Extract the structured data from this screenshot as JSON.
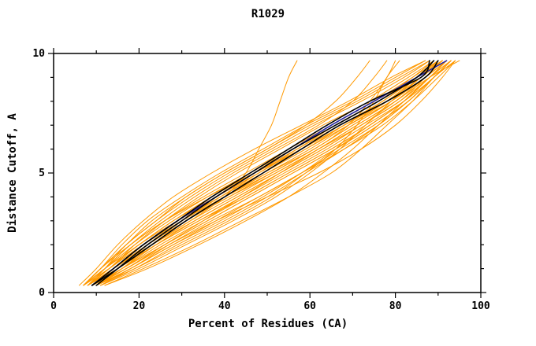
{
  "chart_data": {
    "type": "line",
    "title": "R1029",
    "xlabel": "Percent of Residues (CA)",
    "ylabel": "Distance Cutoff, A",
    "xlim": [
      0,
      100
    ],
    "ylim": [
      0,
      10
    ],
    "grid": false,
    "legend": null,
    "xticks": {
      "major": [
        0,
        20,
        40,
        60,
        80,
        100
      ],
      "labels": [
        "0",
        "20",
        "40",
        "60",
        "80",
        "100"
      ],
      "minor_step": 10
    },
    "yticks": {
      "major": [
        0,
        5,
        10
      ],
      "labels": [
        "0",
        "5",
        "10"
      ],
      "minor_step": 1
    },
    "colors": {
      "orange": "#FF9900",
      "blue": "#2121A3",
      "black": "#000000",
      "frame": "#000000",
      "background": "#FFFFFF"
    },
    "widths": {
      "orange": 1,
      "blue": 1.5,
      "black": 1.6
    },
    "cutoffs": [
      0.3,
      1,
      2,
      3,
      4,
      5,
      6,
      7,
      8,
      9,
      9.7
    ],
    "series": [
      {
        "color": "orange",
        "percent": [
          7,
          11,
          17,
          24,
          32,
          41,
          51,
          61,
          72,
          82,
          88
        ]
      },
      {
        "color": "orange",
        "percent": [
          8,
          13,
          20,
          28,
          37,
          47,
          57,
          67,
          77,
          85,
          90
        ]
      },
      {
        "color": "orange",
        "percent": [
          9,
          15,
          23,
          32,
          42,
          52,
          62,
          72,
          80,
          87,
          92
        ]
      },
      {
        "color": "orange",
        "percent": [
          10,
          17,
          26,
          36,
          46,
          56,
          66,
          75,
          83,
          89,
          93
        ]
      },
      {
        "color": "orange",
        "percent": [
          8,
          14,
          22,
          31,
          41,
          51,
          61,
          70,
          79,
          86,
          91
        ]
      },
      {
        "color": "orange",
        "percent": [
          7,
          12,
          19,
          27,
          36,
          46,
          56,
          66,
          76,
          84,
          89
        ]
      },
      {
        "color": "orange",
        "percent": [
          9,
          16,
          25,
          35,
          45,
          55,
          65,
          74,
          82,
          88,
          92
        ]
      },
      {
        "color": "orange",
        "percent": [
          8,
          13,
          21,
          30,
          40,
          50,
          60,
          69,
          78,
          85,
          90
        ]
      },
      {
        "color": "orange",
        "percent": [
          10,
          18,
          28,
          38,
          48,
          58,
          68,
          77,
          84,
          90,
          94
        ]
      },
      {
        "color": "orange",
        "percent": [
          7,
          11,
          16,
          22,
          30,
          39,
          49,
          59,
          70,
          80,
          87
        ]
      },
      {
        "color": "orange",
        "percent": [
          9,
          15,
          23,
          32,
          40,
          45,
          48,
          51,
          53,
          55,
          57
        ]
      },
      {
        "color": "orange",
        "percent": [
          11,
          20,
          31,
          42,
          52,
          60,
          67,
          73,
          79,
          85,
          90
        ]
      },
      {
        "color": "orange",
        "percent": [
          12,
          21,
          33,
          44,
          55,
          65,
          72,
          78,
          84,
          89,
          93
        ]
      },
      {
        "color": "orange",
        "percent": [
          8,
          12,
          18,
          25,
          33,
          42,
          52,
          62,
          70,
          75,
          78
        ]
      },
      {
        "color": "orange",
        "percent": [
          9,
          14,
          21,
          29,
          38,
          48,
          58,
          68,
          78,
          86,
          91
        ]
      },
      {
        "color": "orange",
        "percent": [
          10,
          16,
          24,
          33,
          43,
          53,
          63,
          72,
          81,
          88,
          92
        ]
      },
      {
        "color": "orange",
        "percent": [
          7,
          12,
          18,
          26,
          35,
          45,
          55,
          65,
          75,
          84,
          90
        ]
      },
      {
        "color": "orange",
        "percent": [
          8,
          14,
          21,
          30,
          39,
          49,
          59,
          68,
          77,
          85,
          91
        ]
      },
      {
        "color": "orange",
        "percent": [
          9,
          15,
          24,
          34,
          44,
          54,
          64,
          73,
          82,
          89,
          93
        ]
      },
      {
        "color": "orange",
        "percent": [
          10,
          17,
          27,
          38,
          50,
          62,
          72,
          80,
          86,
          91,
          94
        ]
      },
      {
        "color": "orange",
        "percent": [
          8,
          13,
          19,
          26,
          34,
          43,
          53,
          63,
          74,
          83,
          89
        ]
      },
      {
        "color": "orange",
        "percent": [
          7,
          11,
          17,
          23,
          31,
          40,
          50,
          60,
          71,
          81,
          88
        ]
      },
      {
        "color": "orange",
        "percent": [
          9,
          16,
          26,
          36,
          46,
          56,
          66,
          75,
          83,
          89,
          93
        ]
      },
      {
        "color": "orange",
        "percent": [
          11,
          19,
          29,
          40,
          50,
          59,
          68,
          76,
          83,
          89,
          93
        ]
      },
      {
        "color": "orange",
        "percent": [
          8,
          13,
          20,
          29,
          39,
          49,
          59,
          69,
          79,
          87,
          92
        ]
      },
      {
        "color": "orange",
        "percent": [
          10,
          16,
          23,
          31,
          40,
          50,
          61,
          69,
          74,
          78,
          80
        ]
      },
      {
        "color": "orange",
        "percent": [
          7,
          12,
          20,
          28,
          38,
          48,
          58,
          68,
          78,
          86,
          91
        ]
      },
      {
        "color": "orange",
        "percent": [
          9,
          14,
          22,
          31,
          41,
          52,
          62,
          71,
          80,
          87,
          92
        ]
      },
      {
        "color": "orange",
        "percent": [
          8,
          15,
          24,
          34,
          45,
          55,
          65,
          74,
          82,
          88,
          93
        ]
      },
      {
        "color": "orange",
        "percent": [
          10,
          18,
          27,
          37,
          48,
          58,
          67,
          76,
          83,
          89,
          94
        ]
      },
      {
        "color": "orange",
        "percent": [
          7,
          13,
          21,
          30,
          40,
          51,
          61,
          70,
          79,
          86,
          90
        ]
      },
      {
        "color": "orange",
        "percent": [
          9,
          17,
          26,
          35,
          44,
          53,
          62,
          71,
          80,
          88,
          95
        ]
      },
      {
        "color": "orange",
        "percent": [
          8,
          12,
          17,
          24,
          31,
          40,
          50,
          59,
          66,
          71,
          74
        ]
      },
      {
        "color": "orange",
        "percent": [
          11,
          18,
          28,
          39,
          49,
          58,
          66,
          74,
          82,
          88,
          92
        ]
      },
      {
        "color": "orange",
        "percent": [
          6,
          10,
          15,
          21,
          28,
          37,
          47,
          58,
          69,
          79,
          87
        ]
      },
      {
        "color": "orange",
        "percent": [
          9,
          15,
          22,
          30,
          39,
          48,
          57,
          66,
          76,
          85,
          91
        ]
      },
      {
        "color": "orange",
        "percent": [
          10,
          19,
          30,
          41,
          51,
          59,
          66,
          71,
          75,
          78,
          81
        ]
      },
      {
        "color": "orange",
        "percent": [
          8,
          14,
          23,
          33,
          43,
          53,
          63,
          72,
          81,
          87,
          91
        ]
      },
      {
        "color": "orange",
        "percent": [
          7,
          11,
          18,
          26,
          36,
          47,
          58,
          68,
          77,
          85,
          90
        ]
      },
      {
        "color": "orange",
        "percent": [
          12,
          22,
          34,
          45,
          55,
          63,
          70,
          76,
          82,
          88,
          93
        ]
      },
      {
        "color": "blue",
        "percent": [
          9,
          14,
          21,
          29,
          38,
          47,
          56,
          65,
          75,
          85,
          92
        ]
      },
      {
        "color": "black",
        "percent": [
          9,
          14,
          21,
          29,
          37,
          46,
          55,
          64,
          74,
          86,
          88
        ]
      },
      {
        "color": "black",
        "percent": [
          10,
          15,
          22,
          30,
          38,
          47,
          56,
          66,
          76,
          85,
          89
        ]
      },
      {
        "color": "black",
        "percent": [
          9,
          15,
          23,
          31,
          40,
          49,
          58,
          67,
          78,
          87,
          90
        ]
      }
    ]
  }
}
